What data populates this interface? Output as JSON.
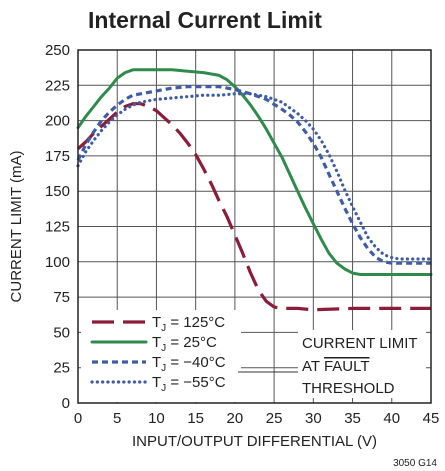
{
  "chart_data": {
    "type": "line",
    "title": "Internal Current Limit",
    "xlabel": "INPUT/OUTPUT DIFFERENTIAL (V)",
    "ylabel": "CURRENT LIMIT (mA)",
    "xlim": [
      0,
      45
    ],
    "ylim": [
      0,
      250
    ],
    "x_ticks": [
      0,
      5,
      10,
      15,
      20,
      25,
      30,
      35,
      40,
      45
    ],
    "y_ticks": [
      0,
      25,
      50,
      75,
      100,
      125,
      150,
      175,
      200,
      225,
      250
    ],
    "grid": true,
    "legend_position": "bottom-left",
    "series": [
      {
        "name": "TJ = 125°C",
        "label_main": "T",
        "label_sub": "J",
        "label_rest": " = 125°C",
        "color": "#8b1c3a",
        "style": "long-dash",
        "x": [
          0,
          1,
          2,
          3,
          4,
          5,
          6,
          7,
          8,
          9,
          10,
          11,
          12,
          13,
          14,
          15,
          16,
          17,
          18,
          19,
          20,
          21,
          22,
          23,
          24,
          25,
          26,
          27,
          28,
          30,
          35,
          40,
          45
        ],
        "y": [
          180,
          185,
          191,
          196,
          201,
          206,
          210,
          212,
          212,
          210,
          207,
          202,
          197,
          191,
          184,
          176,
          166,
          155,
          143,
          132,
          119,
          106,
          92,
          80,
          72,
          68,
          67,
          67,
          67,
          66,
          67,
          67,
          67
        ]
      },
      {
        "name": "TJ = 25°C",
        "label_main": "T",
        "label_sub": "J",
        "label_rest": " = 25°C",
        "color": "#2e8b4a",
        "style": "solid",
        "x": [
          0,
          1,
          2,
          3,
          4,
          5,
          6,
          7,
          8,
          10,
          12,
          14,
          16,
          18,
          19,
          20,
          21,
          22,
          23,
          24,
          25,
          26,
          27,
          28,
          29,
          30,
          31,
          32,
          33,
          34,
          35,
          36,
          37,
          38,
          40,
          42,
          45
        ],
        "y": [
          195,
          203,
          210,
          217,
          223,
          230,
          234,
          236,
          236,
          236,
          236,
          235,
          234,
          232,
          229,
          224,
          218,
          211,
          203,
          194,
          184,
          174,
          162,
          150,
          138,
          127,
          116,
          106,
          99,
          95,
          92,
          91,
          91,
          91,
          91,
          91,
          91
        ]
      },
      {
        "name": "TJ = −40°C",
        "label_main": "T",
        "label_sub": "J",
        "label_rest": " = −40°C",
        "color": "#3e5da6",
        "style": "short-dash",
        "x": [
          0,
          1,
          2,
          3,
          4,
          5,
          6,
          7,
          8,
          10,
          12,
          14,
          16,
          18,
          20,
          22,
          24,
          26,
          27,
          28,
          29,
          30,
          31,
          32,
          33,
          34,
          35,
          36,
          37,
          38,
          39,
          40,
          42,
          45
        ],
        "y": [
          172,
          183,
          192,
          200,
          206,
          211,
          215,
          218,
          219,
          221,
          223,
          224,
          224,
          224,
          222,
          219,
          215,
          208,
          204,
          199,
          192,
          184,
          174,
          162,
          150,
          138,
          127,
          117,
          109,
          103,
          100,
          99,
          99,
          99
        ]
      },
      {
        "name": "TJ = −55°C",
        "label_main": "T",
        "label_sub": "J",
        "label_rest": " = −55°C",
        "color": "#3e5da6",
        "style": "dotted",
        "x": [
          0,
          1,
          2,
          3,
          4,
          5,
          6,
          7,
          8,
          10,
          12,
          14,
          16,
          18,
          20,
          22,
          24,
          26,
          28,
          29,
          30,
          31,
          32,
          33,
          34,
          35,
          36,
          37,
          38,
          39,
          40,
          41,
          42,
          45
        ],
        "y": [
          168,
          178,
          186,
          193,
          199,
          204,
          208,
          211,
          213,
          215,
          216,
          217,
          218,
          218,
          219,
          219,
          217,
          213,
          205,
          200,
          194,
          186,
          176,
          164,
          151,
          139,
          128,
          117,
          110,
          105,
          103,
          102,
          102,
          102
        ]
      }
    ],
    "annotation": {
      "lines": [
        "CURRENT LIMIT",
        "AT FAULT",
        "THRESHOLD"
      ],
      "overlined_word": "FAULT"
    }
  },
  "figure_id": "3050 G14"
}
